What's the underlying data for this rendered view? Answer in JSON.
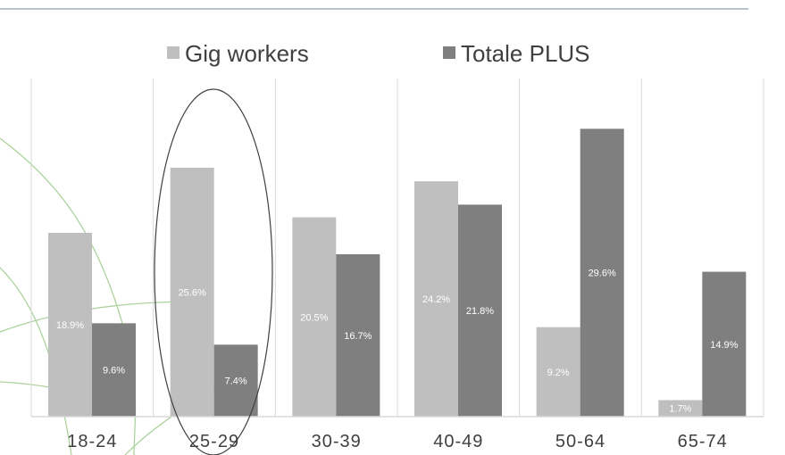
{
  "chart_data": {
    "type": "bar",
    "categories": [
      "18-24",
      "25-29",
      "30-39",
      "40-49",
      "50-64",
      "65-74"
    ],
    "series": [
      {
        "name": "Gig workers",
        "values": [
          18.9,
          25.6,
          20.5,
          24.2,
          9.2,
          1.7
        ],
        "labels": [
          "18.9%",
          "25.6%",
          "20.5%",
          "24.2%",
          "9.2%",
          "1.7%"
        ],
        "color": "#bfbfbf"
      },
      {
        "name": "Totale PLUS",
        "values": [
          9.6,
          7.4,
          16.7,
          21.8,
          29.6,
          14.9
        ],
        "labels": [
          "9.6%",
          "7.4%",
          "16.7%",
          "21.8%",
          "29.6%",
          "14.9%"
        ],
        "color": "#7f7f7f"
      }
    ],
    "ylim": [
      0,
      34
    ],
    "legend_position": "top",
    "grid": "vertical category separators",
    "highlight": "ellipse around 25-29 category"
  },
  "colors": {
    "top_rule": "#6b8ea6",
    "grid": "#d9d9d9",
    "axis": "#d9d9d9",
    "highlight_ellipse": "#404040",
    "decor_curves": "#92c47e"
  }
}
